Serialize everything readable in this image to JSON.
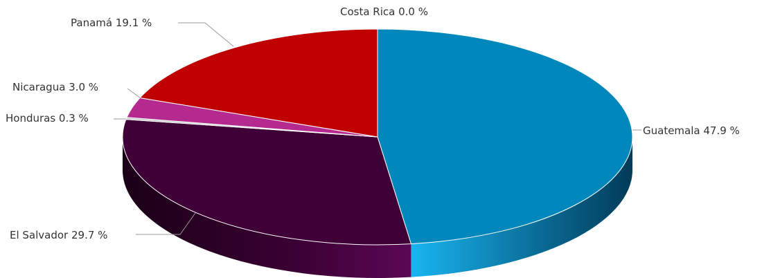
{
  "chart_data": {
    "type": "pie",
    "style": "3d",
    "slices": [
      {
        "label": "Guatemala",
        "value": 47.9,
        "display": "Guatemala 47.9 %",
        "color": "#0087bb"
      },
      {
        "label": "El Salvador",
        "value": 29.7,
        "display": "El Salvador 29.7 %",
        "color": "#3f0038"
      },
      {
        "label": "Honduras",
        "value": 0.3,
        "display": "Honduras 0.3 %",
        "color": "#c9c9c9"
      },
      {
        "label": "Nicaragua",
        "value": 3.0,
        "display": "Nicaragua 3.0 %",
        "color": "#b42a8e"
      },
      {
        "label": "Panamá",
        "value": 19.1,
        "display": "Panamá 19.1 %",
        "color": "#c00000"
      },
      {
        "label": "Costa Rica",
        "value": 0.0,
        "display": "Costa Rica 0.0 %",
        "color": "#9dc3e6"
      }
    ]
  }
}
